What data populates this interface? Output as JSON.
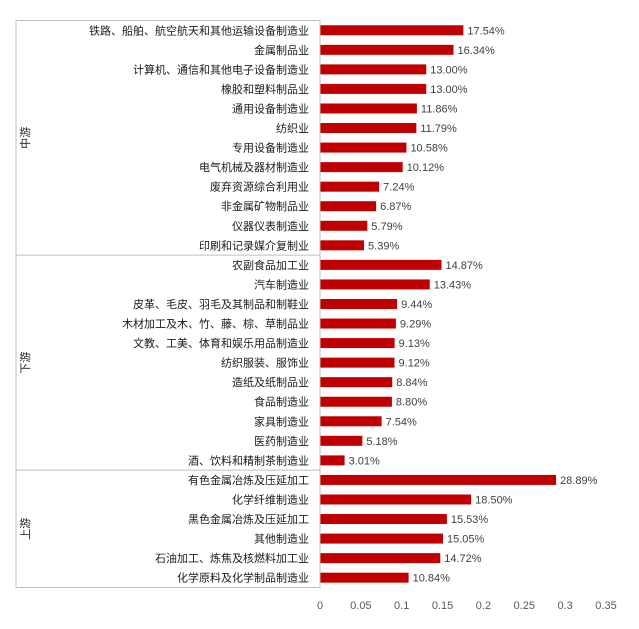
{
  "chart_data": {
    "type": "bar",
    "orientation": "horizontal",
    "xlim": [
      0,
      0.35
    ],
    "xticks": [
      "0",
      "0.05",
      "0.1",
      "0.15",
      "0.2",
      "0.25",
      "0.3",
      "0.35"
    ],
    "grid": false,
    "bar_color": "#C00000",
    "groups": [
      {
        "name": "中游",
        "categories": [
          "铁路、船舶、航空航天和其他运输设备制造业",
          "金属制品业",
          "计算机、通信和其他电子设备制造业",
          "橡胶和塑料制品业",
          "通用设备制造业",
          "纺织业",
          "专用设备制造业",
          "电气机械及器材制造业",
          "废弃资源综合利用业",
          "非金属矿物制品业",
          "仪器仪表制造业",
          "印刷和记录媒介复制业"
        ],
        "values": [
          0.1754,
          0.1634,
          0.13,
          0.13,
          0.1186,
          0.1179,
          0.1058,
          0.1012,
          0.0724,
          0.0687,
          0.0579,
          0.0539
        ],
        "labels": [
          "17.54%",
          "16.34%",
          "13.00%",
          "13.00%",
          "11.86%",
          "11.79%",
          "10.58%",
          "10.12%",
          "7.24%",
          "6.87%",
          "5.79%",
          "5.39%"
        ]
      },
      {
        "name": "下游",
        "categories": [
          "农副食品加工业",
          "汽车制造业",
          "皮革、毛皮、羽毛及其制品和制鞋业",
          "木材加工及木、竹、藤、棕、草制品业",
          "文教、工美、体育和娱乐用品制造业",
          "纺织服装、服饰业",
          "造纸及纸制品业",
          "食品制造业",
          "家具制造业",
          "医药制造业",
          "酒、饮料和精制茶制造业"
        ],
        "values": [
          0.1487,
          0.1343,
          0.0944,
          0.0929,
          0.0913,
          0.0912,
          0.0884,
          0.088,
          0.0754,
          0.0518,
          0.0301
        ],
        "labels": [
          "14.87%",
          "13.43%",
          "9.44%",
          "9.29%",
          "9.13%",
          "9.12%",
          "8.84%",
          "8.80%",
          "7.54%",
          "5.18%",
          "3.01%"
        ]
      },
      {
        "name": "上游",
        "categories": [
          "有色金属冶炼及压延加工",
          "化学纤维制造业",
          "黑色金属冶炼及压延加工",
          "其他制造业",
          "石油加工、炼焦及核燃料加工业",
          "化学原料及化学制品制造业"
        ],
        "values": [
          0.2889,
          0.185,
          0.1553,
          0.1505,
          0.1472,
          0.1084
        ],
        "labels": [
          "28.89%",
          "18.50%",
          "15.53%",
          "15.05%",
          "14.72%",
          "10.84%"
        ]
      }
    ]
  }
}
